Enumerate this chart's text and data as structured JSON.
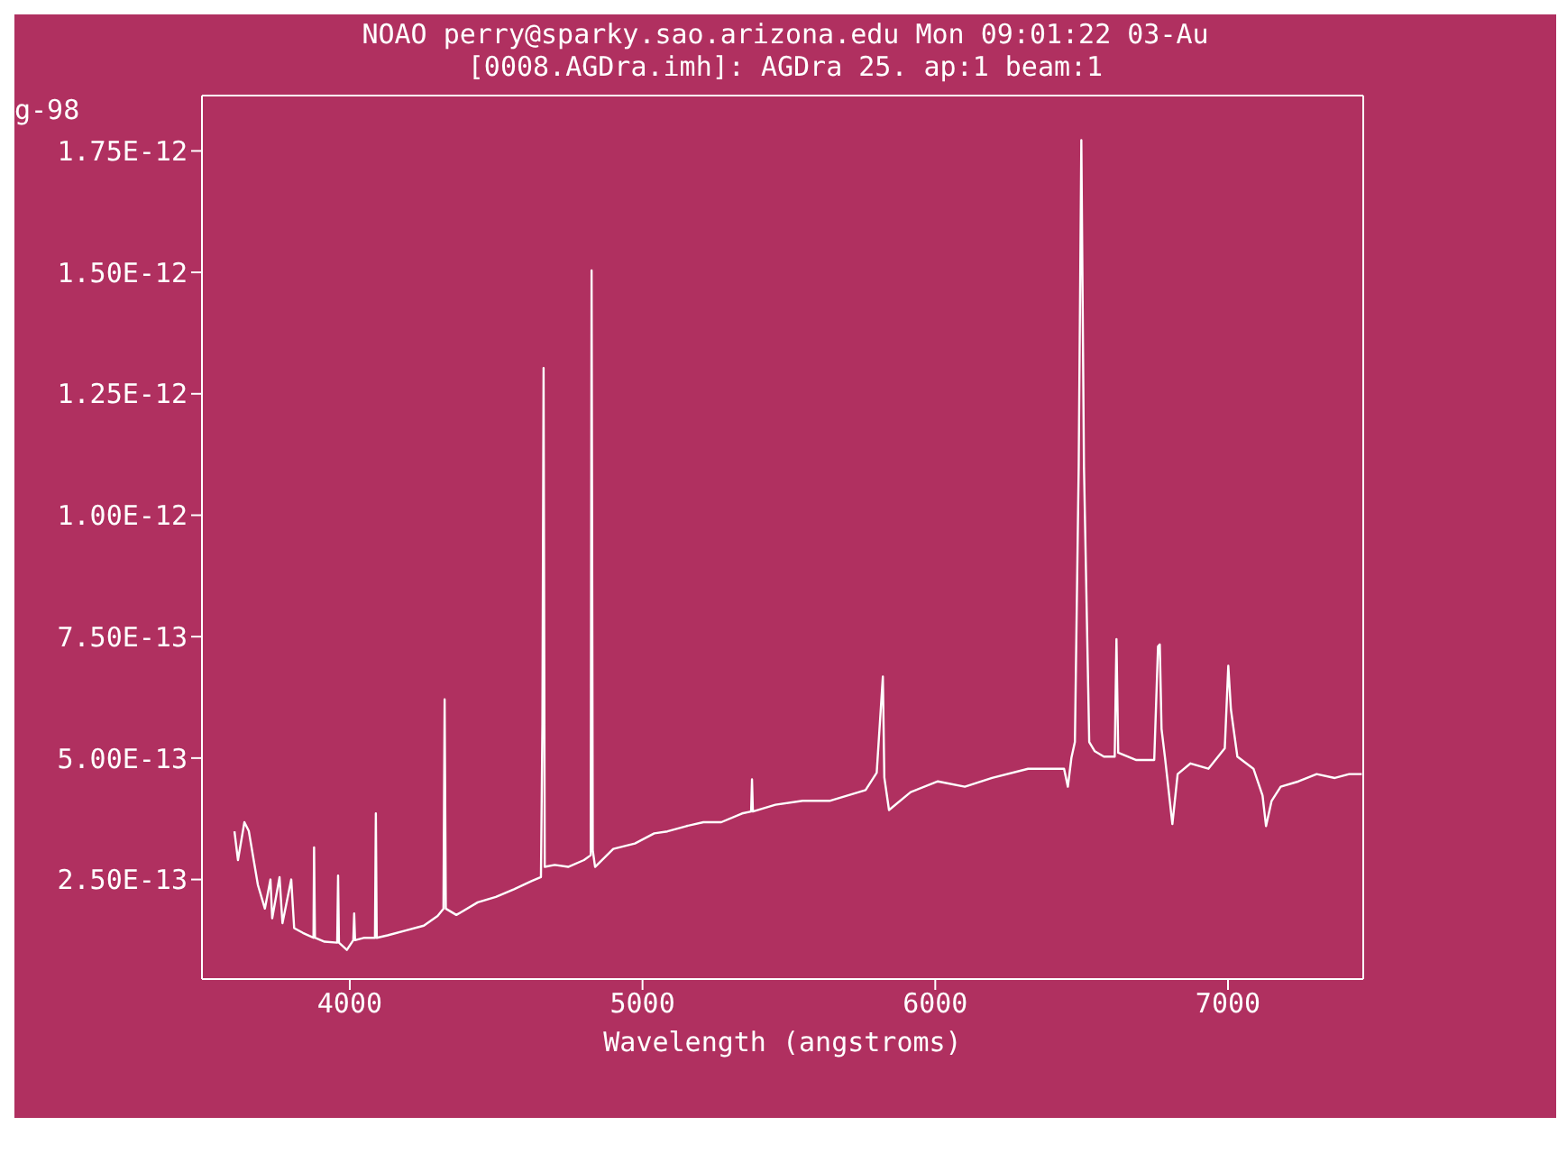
{
  "chart_data": {
    "type": "line",
    "title": "NOAO perry@sparky.sao.arizona.edu Mon 09:01:22 03-Au",
    "subtitle": "[0008.AGDra.imh]: AGDra 25. ap:1 beam:1",
    "xlabel": "Wavelength (angstroms)",
    "annotations": [
      "g-98"
    ],
    "color": "#ffffff",
    "x": [
      3606,
      3618,
      3640,
      3655,
      3686,
      3710,
      3729,
      3735,
      3760,
      3770,
      3800,
      3810,
      3840,
      3876,
      3878,
      3881,
      3914,
      3957,
      3960,
      3963,
      3990,
      4012,
      4015,
      4018,
      4050,
      4086,
      4089,
      4092,
      4129,
      4191,
      4253,
      4300,
      4320,
      4324,
      4328,
      4364,
      4437,
      4499,
      4561,
      4622,
      4653,
      4658,
      4662,
      4666,
      4700,
      4746,
      4800,
      4823,
      4826,
      4830,
      4838,
      4900,
      4974,
      5040,
      5085,
      5150,
      5208,
      5269,
      5340,
      5371,
      5374,
      5377,
      5454,
      5547,
      5639,
      5762,
      5800,
      5821,
      5826,
      5842,
      5916,
      6009,
      6101,
      6194,
      6317,
      6440,
      6453,
      6465,
      6477,
      6490,
      6499,
      6508,
      6526,
      6545,
      6576,
      6613,
      6619,
      6625,
      6687,
      6748,
      6761,
      6767,
      6773,
      6785,
      6810,
      6828,
      6872,
      6933,
      6989,
      7001,
      7010,
      7032,
      7087,
      7118,
      7130,
      7149,
      7180,
      7241,
      7303,
      7365,
      7414,
      7457
    ],
    "values": [
      3.49e-13,
      2.9e-13,
      3.68e-13,
      3.5e-13,
      2.39e-13,
      1.9e-13,
      2.5e-13,
      1.7e-13,
      2.55e-13,
      1.6e-13,
      2.5e-13,
      1.5e-13,
      1.4e-13,
      1.3e-13,
      3.16e-13,
      1.3e-13,
      1.22e-13,
      1.2e-13,
      2.58e-13,
      1.2e-13,
      1.05e-13,
      1.25e-13,
      1.8e-13,
      1.25e-13,
      1.3e-13,
      1.3e-13,
      3.86e-13,
      1.3e-13,
      1.35e-13,
      1.45e-13,
      1.55e-13,
      1.75e-13,
      1.9e-13,
      6.21e-13,
      1.9e-13,
      1.77e-13,
      2.03e-13,
      2.14e-13,
      2.3e-13,
      2.47e-13,
      2.55e-13,
      5.7e-13,
      1.303e-12,
      2.76e-13,
      2.8e-13,
      2.76e-13,
      2.9e-13,
      3e-13,
      1.504e-12,
      3.1e-13,
      2.76e-13,
      3.13e-13,
      3.24e-13,
      3.45e-13,
      3.49e-13,
      3.6e-13,
      3.68e-13,
      3.68e-13,
      3.86e-13,
      3.9e-13,
      4.56e-13,
      3.9e-13,
      4.04e-13,
      4.12e-13,
      4.12e-13,
      4.34e-13,
      4.7e-13,
      6.68e-13,
      4.6e-13,
      3.93e-13,
      4.3e-13,
      4.52e-13,
      4.41e-13,
      4.59e-13,
      4.78e-13,
      4.78e-13,
      4.41e-13,
      5e-13,
      5.33e-13,
      1.1e-12,
      1.772e-12,
      1.1e-12,
      5.33e-13,
      5.14e-13,
      5.03e-13,
      5.03e-13,
      7.45e-13,
      5.11e-13,
      4.96e-13,
      4.96e-13,
      7.3e-13,
      7.34e-13,
      5.6e-13,
      5e-13,
      3.64e-13,
      4.67e-13,
      4.89e-13,
      4.78e-13,
      5.2e-13,
      6.9e-13,
      6e-13,
      5.03e-13,
      4.78e-13,
      4.23e-13,
      3.6e-13,
      4.12e-13,
      4.41e-13,
      4.52e-13,
      4.67e-13,
      4.59e-13,
      4.67e-13,
      4.67e-13
    ],
    "xlim": [
      3495,
      7462
    ],
    "xticks": [
      4000,
      5000,
      6000,
      7000
    ],
    "ylim": [
      4.5e-14,
      1.864e-12
    ],
    "yticks": [
      {
        "value": 2.5e-13,
        "label": "2.50E-13"
      },
      {
        "value": 5e-13,
        "label": "5.00E-13"
      },
      {
        "value": 7.5e-13,
        "label": "7.50E-13"
      },
      {
        "value": 1e-12,
        "label": "1.00E-12"
      },
      {
        "value": 1.25e-12,
        "label": "1.25E-12"
      },
      {
        "value": 1.5e-12,
        "label": "1.50E-12"
      },
      {
        "value": 1.75e-12,
        "label": "1.75E-12"
      }
    ]
  }
}
